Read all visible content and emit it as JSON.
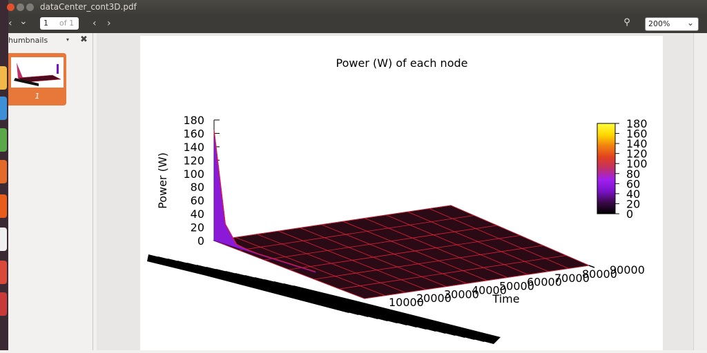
{
  "window": {
    "title": "dataCenter_cont3D.pdf"
  },
  "toolbar": {
    "back_glyph": "‹",
    "down_glyph": "⌄",
    "page_current": "1",
    "page_of": "of 1",
    "prev_glyph": "‹",
    "next_glyph": "›",
    "search_glyph": "🔍",
    "zoom_value": "200%",
    "zoom_chevron": "⌄"
  },
  "sidebar": {
    "header": "humbnails",
    "dropdown_glyph": "▾",
    "close_glyph": "✖",
    "thumbnails": [
      {
        "label": "1"
      }
    ]
  },
  "colors": {
    "accent": "#e8773a",
    "titlebar": "#3c3b37",
    "grid": "#e0203a",
    "surface": "#2a0a14"
  },
  "chart_data": {
    "type": "surface3d",
    "title": "Power (W) of each node",
    "zlabel": "Power (W)",
    "xlabel": "Time",
    "z_ticks": [
      "180",
      "160",
      "140",
      "120",
      "100",
      "80",
      "60",
      "40",
      "20",
      "0"
    ],
    "x_ticks": [
      "10000",
      "20000",
      "30000",
      "40000",
      "50000",
      "60000",
      "70000",
      "80000",
      "90000"
    ],
    "colorbar_ticks": [
      "180",
      "160",
      "140",
      "120",
      "100",
      "80",
      "60",
      "40",
      "20",
      "0"
    ],
    "zlim": [
      0,
      180
    ],
    "colorbar": [
      "#000000",
      "#3b0a4a",
      "#7a12c8",
      "#a020f0",
      "#c0306a",
      "#e04020",
      "#f08010",
      "#ffd800",
      "#ffff40"
    ],
    "series": [
      {
        "values": [
          165,
          30,
          5,
          2,
          1,
          1,
          1,
          1,
          1,
          1
        ]
      }
    ]
  }
}
